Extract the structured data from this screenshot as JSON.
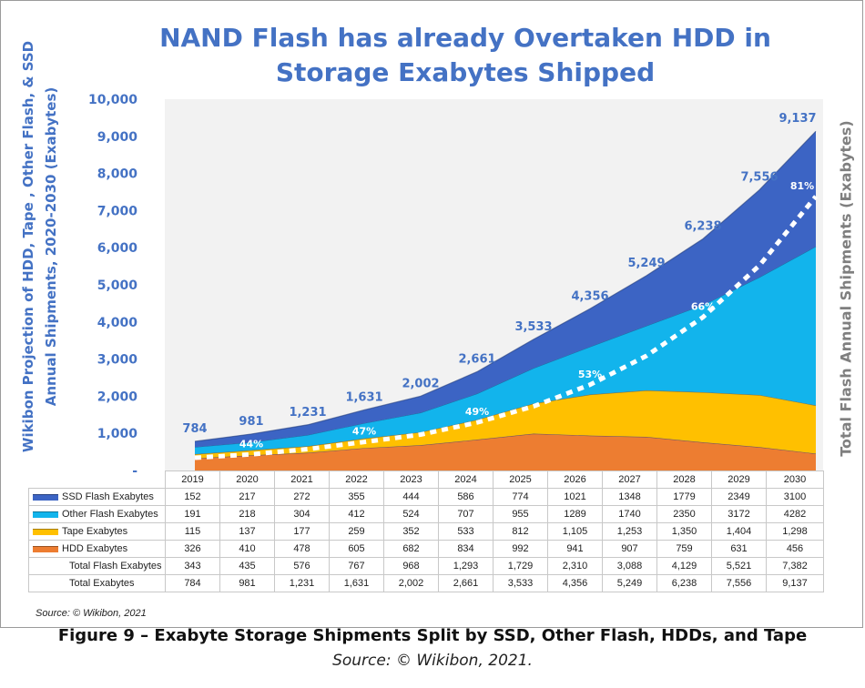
{
  "chart_data": {
    "type": "area",
    "title": "NAND Flash has already Overtaken HDD in Storage Exabytes Shipped",
    "title_lines": [
      "NAND Flash has already Overtaken HDD in",
      "Storage Exabytes Shipped"
    ],
    "ylabel_lines": [
      "Wikibon Projection of HDD, Tape , Other Flash, & SSD",
      "Annual Shipments, 2020-2030 (Exabytes)"
    ],
    "y2label": "Total Flash Annual Shipments (Exabytes)",
    "ylim": [
      0,
      10000
    ],
    "yticks": [
      0,
      1000,
      2000,
      3000,
      4000,
      5000,
      6000,
      7000,
      8000,
      9000,
      10000
    ],
    "ytick_labels": [
      "-",
      "1,000",
      "2,000",
      "3,000",
      "4,000",
      "5,000",
      "6,000",
      "7,000",
      "8,000",
      "9,000",
      "10,000"
    ],
    "categories": [
      "2019",
      "2020",
      "2021",
      "2022",
      "2023",
      "2024",
      "2025",
      "2026",
      "2027",
      "2028",
      "2029",
      "2030"
    ],
    "series": [
      {
        "name": "SSD Flash Exabytes",
        "color": "#3c64c4",
        "values": [
          152,
          217,
          272,
          355,
          444,
          586,
          774,
          1021,
          1348,
          1779,
          2349,
          3100
        ],
        "labels": [
          "152",
          "217",
          "272",
          "355",
          "444",
          "586",
          "774",
          "1021",
          "1348",
          "1779",
          "2349",
          "3100"
        ]
      },
      {
        "name": "Other Flash Exabytes",
        "color": "#12b4ec",
        "values": [
          191,
          218,
          304,
          412,
          524,
          707,
          955,
          1289,
          1740,
          2350,
          3172,
          4282
        ],
        "labels": [
          "191",
          "218",
          "304",
          "412",
          "524",
          "707",
          "955",
          "1289",
          "1740",
          "2350",
          "3172",
          "4282"
        ]
      },
      {
        "name": "Tape Exabytes",
        "color": "#ffc000",
        "values": [
          115,
          137,
          177,
          259,
          352,
          533,
          812,
          1105,
          1253,
          1350,
          1404,
          1298
        ],
        "labels": [
          "115",
          "137",
          "177",
          "259",
          "352",
          "533",
          "812",
          "1,105",
          "1,253",
          "1,350",
          "1,404",
          "1,298"
        ]
      },
      {
        "name": "HDD Exabytes",
        "color": "#ed7d31",
        "values": [
          326,
          410,
          478,
          605,
          682,
          834,
          992,
          941,
          907,
          759,
          631,
          456
        ],
        "labels": [
          "326",
          "410",
          "478",
          "605",
          "682",
          "834",
          "992",
          "941",
          "907",
          "759",
          "631",
          "456"
        ]
      }
    ],
    "total_flash": {
      "name": "Total Flash Exabytes",
      "values": [
        343,
        435,
        576,
        767,
        968,
        1293,
        1729,
        2310,
        3088,
        4129,
        5521,
        7382
      ],
      "labels": [
        "343",
        "435",
        "576",
        "767",
        "968",
        "1,293",
        "1,729",
        "2,310",
        "3,088",
        "4,129",
        "5,521",
        "7,382"
      ]
    },
    "total": {
      "name": "Total Exabytes",
      "values": [
        784,
        981,
        1231,
        1631,
        2002,
        2661,
        3533,
        4356,
        5249,
        6238,
        7556,
        9137
      ],
      "labels": [
        "784",
        "981",
        "1,231",
        "1,631",
        "2,002",
        "2,661",
        "3,533",
        "4,356",
        "5,249",
        "6,238",
        "7,556",
        "9,137"
      ]
    },
    "percent_annotations": [
      {
        "year": "2020",
        "label": "44%"
      },
      {
        "year": "2022",
        "label": "47%"
      },
      {
        "year": "2024",
        "label": "49%"
      },
      {
        "year": "2026",
        "label": "53%"
      },
      {
        "year": "2028",
        "label": "66%"
      },
      {
        "year": "2030",
        "label": "81%"
      }
    ]
  },
  "source_note": "Source: © Wikibon, 2021",
  "caption": "Figure 9 – Exabyte Storage Shipments Split by SSD, Other Flash, HDDs, and Tape",
  "caption_source": "Source: © Wikibon, 2021."
}
